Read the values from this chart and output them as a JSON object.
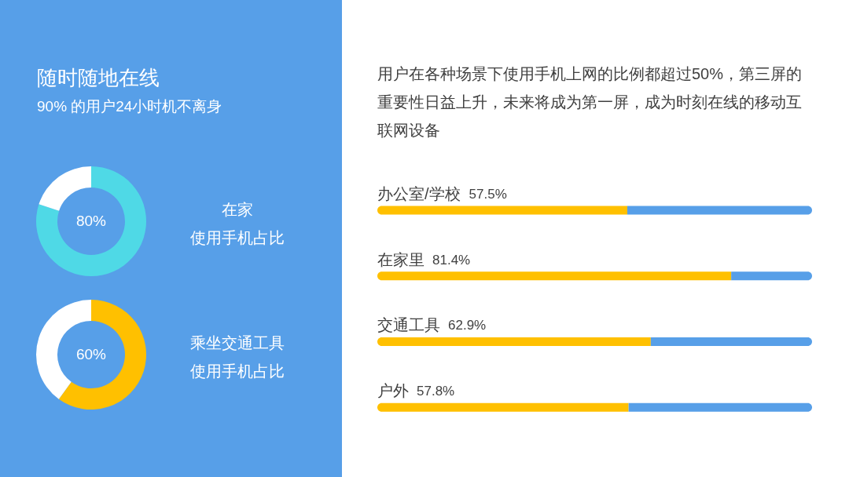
{
  "chart_data": [
    {
      "type": "other",
      "title": "随时随地在线",
      "subtitle": "90% 的用户24小时机不离身"
    },
    {
      "type": "donut",
      "title": "在家",
      "subtitle": "使用手机占比",
      "categories": [
        null,
        null
      ],
      "values": [
        80,
        20
      ],
      "colors": [
        "#4fd9e6",
        "#ffffff"
      ],
      "value_labels": [
        "80%",
        null
      ]
    },
    {
      "type": "donut",
      "title": "乘坐交通工具",
      "subtitle": "使用手机占比",
      "categories": [
        null,
        null
      ],
      "values": [
        60,
        40
      ],
      "colors": [
        "#ffc000",
        "#ffffff"
      ],
      "value_labels": [
        "60%",
        null
      ]
    },
    {
      "type": "bar",
      "orientation": "horizontal",
      "stacked": true,
      "title": "用户在各种场景下使用手机上网的比例都超过50%，第三屏的重要性日益上升，未来将成为第一屏，成为时刻在线的移动互联网设备",
      "categories": [
        "办公室/学校",
        "在家里",
        "交通工具",
        "户外"
      ],
      "series": [
        {
          "color": "#ffc000",
          "values": [
            57.5,
            81.4,
            62.9,
            57.8
          ],
          "value_labels": [
            "57.5%",
            "81.4%",
            "62.9%",
            "57.8%"
          ]
        },
        {
          "color": "#579fe8",
          "values": [
            42.5,
            18.6,
            37.1,
            42.2
          ]
        }
      ],
      "tick_labels": "y"
    }
  ]
}
